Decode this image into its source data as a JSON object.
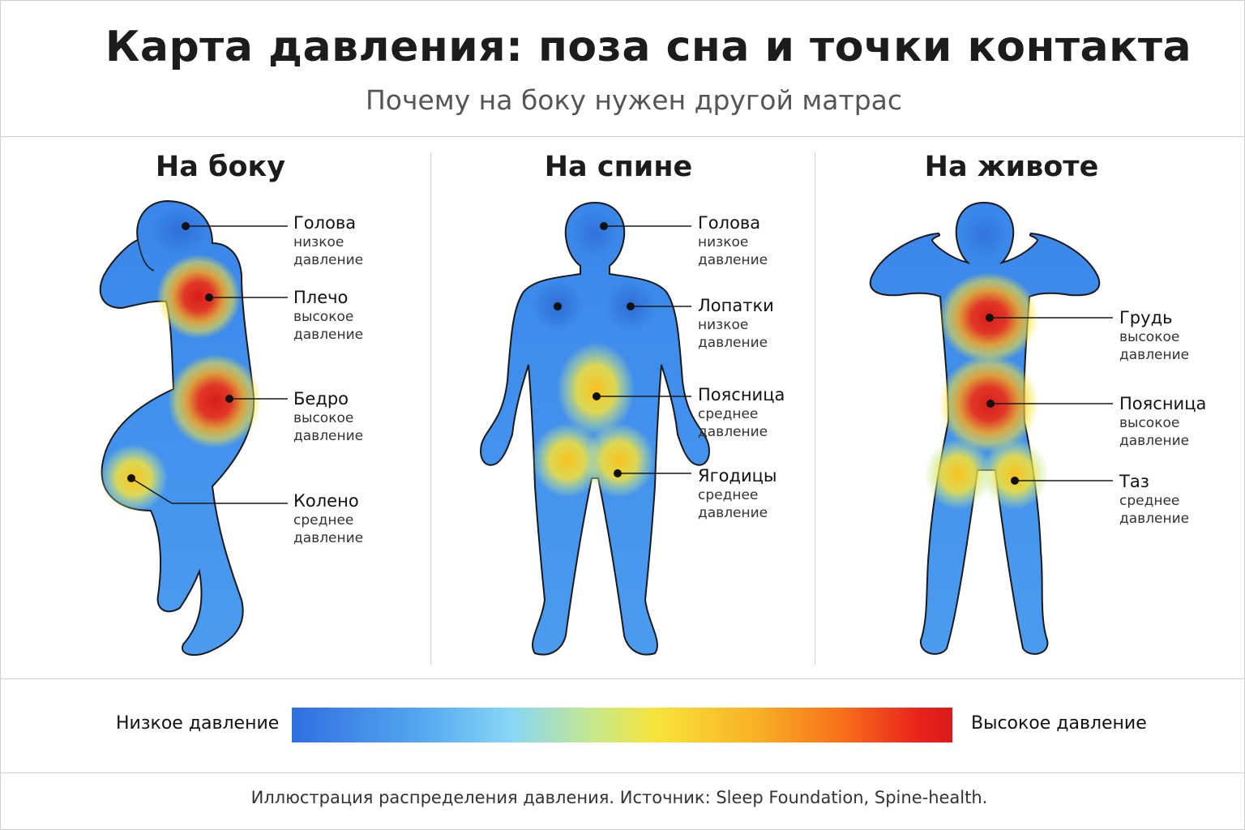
{
  "title": "Карта давления: поза сна и точки контакта",
  "subtitle": "Почему на боку нужен другой матрас",
  "panels": [
    {
      "title": "На боку",
      "points": [
        {
          "name": "Голова",
          "pressure": "низкое давление",
          "level": "low"
        },
        {
          "name": "Плечо",
          "pressure": "высокое давление",
          "level": "high"
        },
        {
          "name": "Бедро",
          "pressure": "высокое давление",
          "level": "high"
        },
        {
          "name": "Колено",
          "pressure": "среднее давление",
          "level": "medium"
        }
      ]
    },
    {
      "title": "На спине",
      "points": [
        {
          "name": "Голова",
          "pressure": "низкое давление",
          "level": "low"
        },
        {
          "name": "Лопатки",
          "pressure": "низкое давление",
          "level": "low"
        },
        {
          "name": "Поясница",
          "pressure": "среднее давление",
          "level": "medium"
        },
        {
          "name": "Ягодицы",
          "pressure": "среднее давление",
          "level": "medium"
        }
      ]
    },
    {
      "title": "На животе",
      "points": [
        {
          "name": "Грудь",
          "pressure": "высокое давление",
          "level": "high"
        },
        {
          "name": "Поясница",
          "pressure": "высокое давление",
          "level": "high"
        },
        {
          "name": "Таз",
          "pressure": "среднее давление",
          "level": "medium"
        }
      ]
    }
  ],
  "legend": {
    "low_label": "Низкое давление",
    "high_label": "Высокое давление",
    "colors": [
      "#2f6fe0",
      "#86d6f6",
      "#f7e43a",
      "#f7711a",
      "#d81b1b"
    ]
  },
  "footer": "Иллюстрация распределения давления. Источник: Sleep Foundation, Spine-health."
}
